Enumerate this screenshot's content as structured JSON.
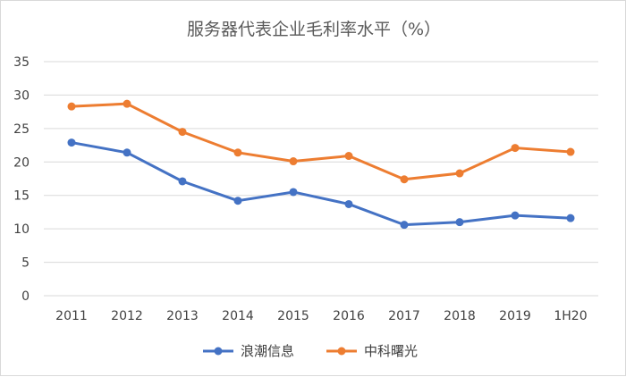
{
  "chart_data": {
    "type": "line",
    "title": "服务器代表企业毛利率水平（%）",
    "xlabel": "",
    "ylabel": "",
    "categories": [
      "2011",
      "2012",
      "2013",
      "2014",
      "2015",
      "2016",
      "2017",
      "2018",
      "2019",
      "1H20"
    ],
    "ylim": [
      0,
      35
    ],
    "yticks": [
      0,
      5,
      10,
      15,
      20,
      25,
      30,
      35
    ],
    "grid": true,
    "legend_position": "bottom",
    "series": [
      {
        "name": "浪潮信息",
        "color": "#4472c4",
        "values": [
          22.9,
          21.4,
          17.1,
          14.2,
          15.5,
          13.7,
          10.6,
          11.0,
          12.0,
          11.6
        ]
      },
      {
        "name": "中科曙光",
        "color": "#ed7d31",
        "values": [
          28.3,
          28.7,
          24.5,
          21.4,
          20.1,
          20.9,
          17.4,
          18.3,
          22.1,
          21.5
        ]
      }
    ]
  }
}
